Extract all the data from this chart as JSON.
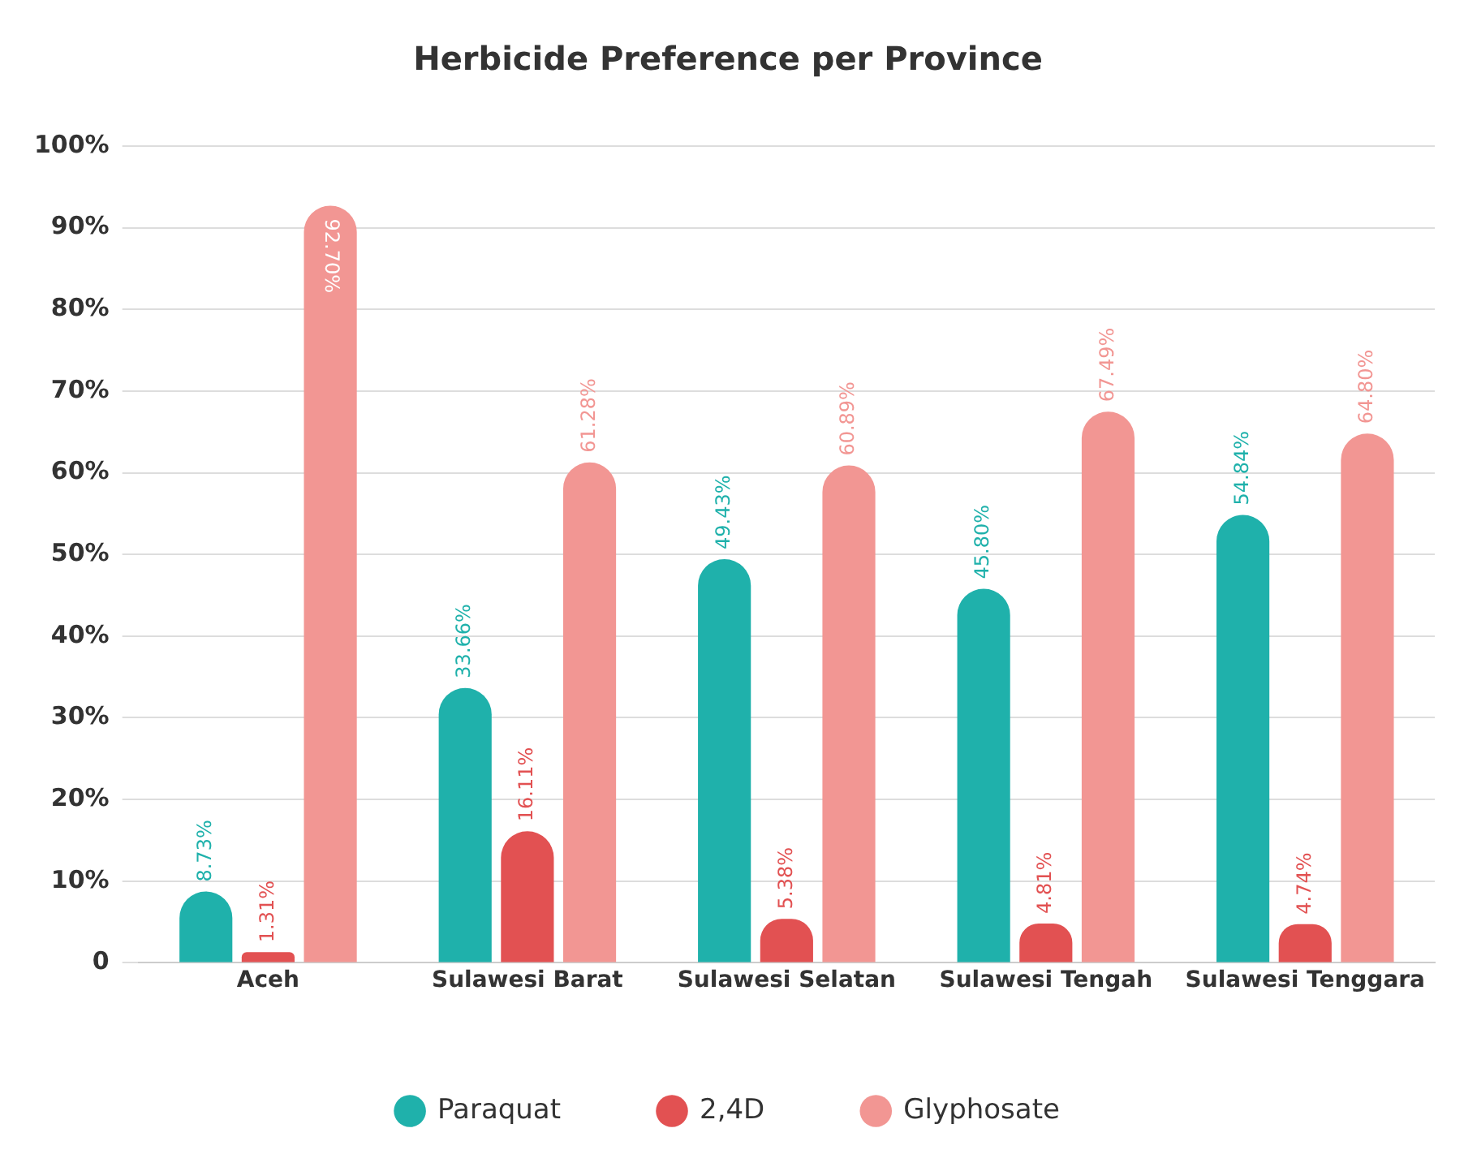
{
  "chart_data": {
    "type": "bar",
    "title": "Herbicide Preference per Province",
    "categories": [
      "Aceh",
      "Sulawesi Barat",
      "Sulawesi Selatan",
      "Sulawesi Tengah",
      "Sulawesi Tenggara"
    ],
    "series": [
      {
        "name": "Paraquat",
        "color": "#1fb1ab",
        "values": [
          8.73,
          33.66,
          49.43,
          45.8,
          54.84
        ],
        "value_labels": [
          "8.73%",
          "33.66%",
          "49.43%",
          "45.80%",
          "54.84%"
        ]
      },
      {
        "name": "2,4D",
        "color": "#e25152",
        "values": [
          1.31,
          16.11,
          5.38,
          4.81,
          4.74
        ],
        "value_labels": [
          "1.31%",
          "16.11%",
          "5.38%",
          "4.81%",
          "4.74%"
        ]
      },
      {
        "name": "Glyphosate",
        "color": "#f29693",
        "values": [
          92.7,
          61.28,
          60.89,
          67.49,
          64.8
        ],
        "value_labels": [
          "92.70%",
          "61.28%",
          "60.89%",
          "67.49%",
          "64.80%"
        ]
      }
    ],
    "ylim": [
      0,
      100
    ],
    "yticks": [
      0,
      {
        "value": 10,
        "label": "10%"
      },
      {
        "value": 20,
        "label": "20%"
      },
      {
        "value": 30,
        "label": "30%"
      },
      {
        "value": 40,
        "label": "40%"
      },
      {
        "value": 50,
        "label": "50%"
      },
      {
        "value": 60,
        "label": "60%"
      },
      {
        "value": 70,
        "label": "70%"
      },
      {
        "value": 80,
        "label": "80%"
      },
      {
        "value": 90,
        "label": "90%"
      },
      {
        "value": 100,
        "label": "100%"
      }
    ],
    "grid": "y",
    "legend": "bottom"
  }
}
